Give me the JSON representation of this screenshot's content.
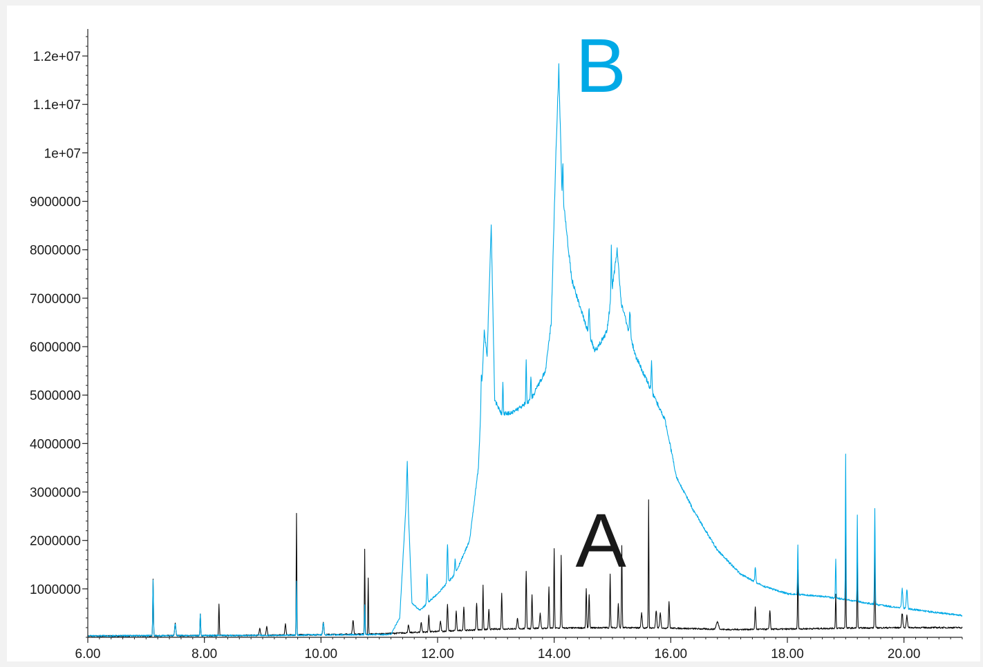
{
  "chart_data": {
    "type": "line",
    "title": "",
    "xlabel": "",
    "ylabel": "",
    "xlim": [
      6.0,
      21.0
    ],
    "ylim": [
      0,
      12500000
    ],
    "grid": false,
    "x_ticks": [
      6.0,
      8.0,
      10.0,
      12.0,
      14.0,
      16.0,
      18.0,
      20.0
    ],
    "x_tick_labels": [
      "6.00",
      "8.00",
      "10.00",
      "12.00",
      "14.00",
      "16.00",
      "18.00",
      "20.00"
    ],
    "y_ticks": [
      1000000,
      2000000,
      3000000,
      4000000,
      5000000,
      6000000,
      7000000,
      8000000,
      9000000,
      10000000,
      11000000,
      12000000
    ],
    "y_tick_labels": [
      "1000000",
      "2000000",
      "3000000",
      "4000000",
      "5000000",
      "6000000",
      "7000000",
      "8000000",
      "9000000",
      "1e+07",
      "1.1e+07",
      "1.2e+07"
    ],
    "annotations": [
      {
        "text": "B",
        "x": 14.8,
        "y": 11800000,
        "color": "#00a9e6"
      },
      {
        "text": "A",
        "x": 14.8,
        "y": 2000000,
        "color": "#1a1a1a"
      }
    ],
    "series": [
      {
        "color": "#0a0a0a",
        "baseline": [
          [
            6.0,
            25000
          ],
          [
            9.0,
            40000
          ],
          [
            11.0,
            70000
          ],
          [
            12.0,
            120000
          ],
          [
            13.0,
            170000
          ],
          [
            14.0,
            190000
          ],
          [
            15.0,
            200000
          ],
          [
            16.0,
            190000
          ],
          [
            17.0,
            160000
          ],
          [
            18.0,
            170000
          ],
          [
            19.0,
            190000
          ],
          [
            20.0,
            200000
          ],
          [
            21.0,
            200000
          ]
        ],
        "peaks": [
          [
            7.12,
            1150000,
            0.006
          ],
          [
            7.5,
            250000,
            0.01
          ],
          [
            7.93,
            450000,
            0.006
          ],
          [
            8.25,
            660000,
            0.006
          ],
          [
            8.95,
            150000,
            0.01
          ],
          [
            9.07,
            170000,
            0.01
          ],
          [
            9.39,
            220000,
            0.01
          ],
          [
            9.58,
            2500000,
            0.005
          ],
          [
            10.04,
            250000,
            0.01
          ],
          [
            10.55,
            300000,
            0.01
          ],
          [
            10.75,
            1750000,
            0.005
          ],
          [
            10.81,
            1150000,
            0.005
          ],
          [
            11.5,
            150000,
            0.01
          ],
          [
            11.72,
            200000,
            0.01
          ],
          [
            11.85,
            350000,
            0.008
          ],
          [
            12.05,
            200000,
            0.01
          ],
          [
            12.17,
            550000,
            0.008
          ],
          [
            12.32,
            400000,
            0.008
          ],
          [
            12.45,
            500000,
            0.008
          ],
          [
            12.67,
            550000,
            0.008
          ],
          [
            12.78,
            900000,
            0.006
          ],
          [
            12.88,
            400000,
            0.008
          ],
          [
            13.1,
            750000,
            0.007
          ],
          [
            13.37,
            200000,
            0.01
          ],
          [
            13.52,
            1200000,
            0.007
          ],
          [
            13.62,
            700000,
            0.007
          ],
          [
            13.76,
            300000,
            0.01
          ],
          [
            13.91,
            850000,
            0.007
          ],
          [
            14.0,
            1650000,
            0.006
          ],
          [
            14.12,
            1500000,
            0.006
          ],
          [
            14.55,
            800000,
            0.007
          ],
          [
            14.6,
            700000,
            0.007
          ],
          [
            14.96,
            1100000,
            0.006
          ],
          [
            15.1,
            500000,
            0.008
          ],
          [
            15.16,
            1700000,
            0.006
          ],
          [
            15.5,
            300000,
            0.01
          ],
          [
            15.62,
            2650000,
            0.005
          ],
          [
            15.75,
            350000,
            0.01
          ],
          [
            15.82,
            300000,
            0.01
          ],
          [
            15.97,
            550000,
            0.008
          ],
          [
            16.8,
            150000,
            0.02
          ],
          [
            17.45,
            450000,
            0.008
          ],
          [
            17.7,
            400000,
            0.008
          ],
          [
            18.18,
            1200000,
            0.006
          ],
          [
            18.83,
            700000,
            0.006
          ],
          [
            19.0,
            2300000,
            0.005
          ],
          [
            19.2,
            1700000,
            0.005
          ],
          [
            19.5,
            1750000,
            0.006
          ],
          [
            19.97,
            300000,
            0.01
          ],
          [
            20.05,
            250000,
            0.01
          ]
        ]
      },
      {
        "color": "#00a9e6",
        "baseline": [
          [
            6.0,
            30000
          ],
          [
            9.0,
            40000
          ],
          [
            11.2,
            60000
          ],
          [
            11.35,
            400000
          ],
          [
            11.48,
            3200000
          ],
          [
            11.56,
            700000
          ],
          [
            11.7,
            560000
          ],
          [
            12.0,
            900000
          ],
          [
            12.3,
            1300000
          ],
          [
            12.55,
            2000000
          ],
          [
            12.7,
            3500000
          ],
          [
            12.8,
            6300000
          ],
          [
            12.85,
            5800000
          ],
          [
            12.92,
            8500000
          ],
          [
            12.98,
            4900000
          ],
          [
            13.1,
            4600000
          ],
          [
            13.3,
            4650000
          ],
          [
            13.6,
            4900000
          ],
          [
            13.85,
            5500000
          ],
          [
            13.95,
            6500000
          ],
          [
            14.02,
            9600000
          ],
          [
            14.08,
            11800000
          ],
          [
            14.13,
            9300000
          ],
          [
            14.3,
            7400000
          ],
          [
            14.5,
            6600000
          ],
          [
            14.7,
            5900000
          ],
          [
            14.9,
            6300000
          ],
          [
            15.08,
            8000000
          ],
          [
            15.15,
            6900000
          ],
          [
            15.4,
            5800000
          ],
          [
            15.55,
            5400000
          ],
          [
            15.7,
            5000000
          ],
          [
            15.9,
            4500000
          ],
          [
            16.1,
            3300000
          ],
          [
            16.4,
            2600000
          ],
          [
            16.8,
            1800000
          ],
          [
            17.2,
            1300000
          ],
          [
            17.6,
            1050000
          ],
          [
            18.0,
            900000
          ],
          [
            18.5,
            860000
          ],
          [
            19.0,
            780000
          ],
          [
            19.5,
            680000
          ],
          [
            20.0,
            600000
          ],
          [
            20.5,
            520000
          ],
          [
            21.0,
            450000
          ]
        ],
        "peaks": [
          [
            7.12,
            1150000,
            0.006
          ],
          [
            7.5,
            250000,
            0.01
          ],
          [
            7.93,
            450000,
            0.006
          ],
          [
            9.58,
            1100000,
            0.005
          ],
          [
            10.04,
            250000,
            0.01
          ],
          [
            10.75,
            600000,
            0.005
          ],
          [
            11.48,
            400000,
            0.01
          ],
          [
            11.82,
            600000,
            0.008
          ],
          [
            12.17,
            800000,
            0.008
          ],
          [
            12.3,
            300000,
            0.008
          ],
          [
            12.75,
            500000,
            0.006
          ],
          [
            13.12,
            700000,
            0.006
          ],
          [
            13.52,
            900000,
            0.006
          ],
          [
            13.6,
            500000,
            0.006
          ],
          [
            14.15,
            700000,
            0.006
          ],
          [
            14.6,
            500000,
            0.01
          ],
          [
            14.98,
            1000000,
            0.006
          ],
          [
            15.3,
            500000,
            0.008
          ],
          [
            15.67,
            600000,
            0.008
          ],
          [
            17.45,
            300000,
            0.008
          ],
          [
            18.18,
            1000000,
            0.006
          ],
          [
            18.83,
            800000,
            0.006
          ],
          [
            19.0,
            3000000,
            0.005
          ],
          [
            19.2,
            1800000,
            0.005
          ],
          [
            19.5,
            2000000,
            0.006
          ],
          [
            19.97,
            400000,
            0.01
          ],
          [
            20.05,
            400000,
            0.01
          ]
        ]
      }
    ]
  }
}
